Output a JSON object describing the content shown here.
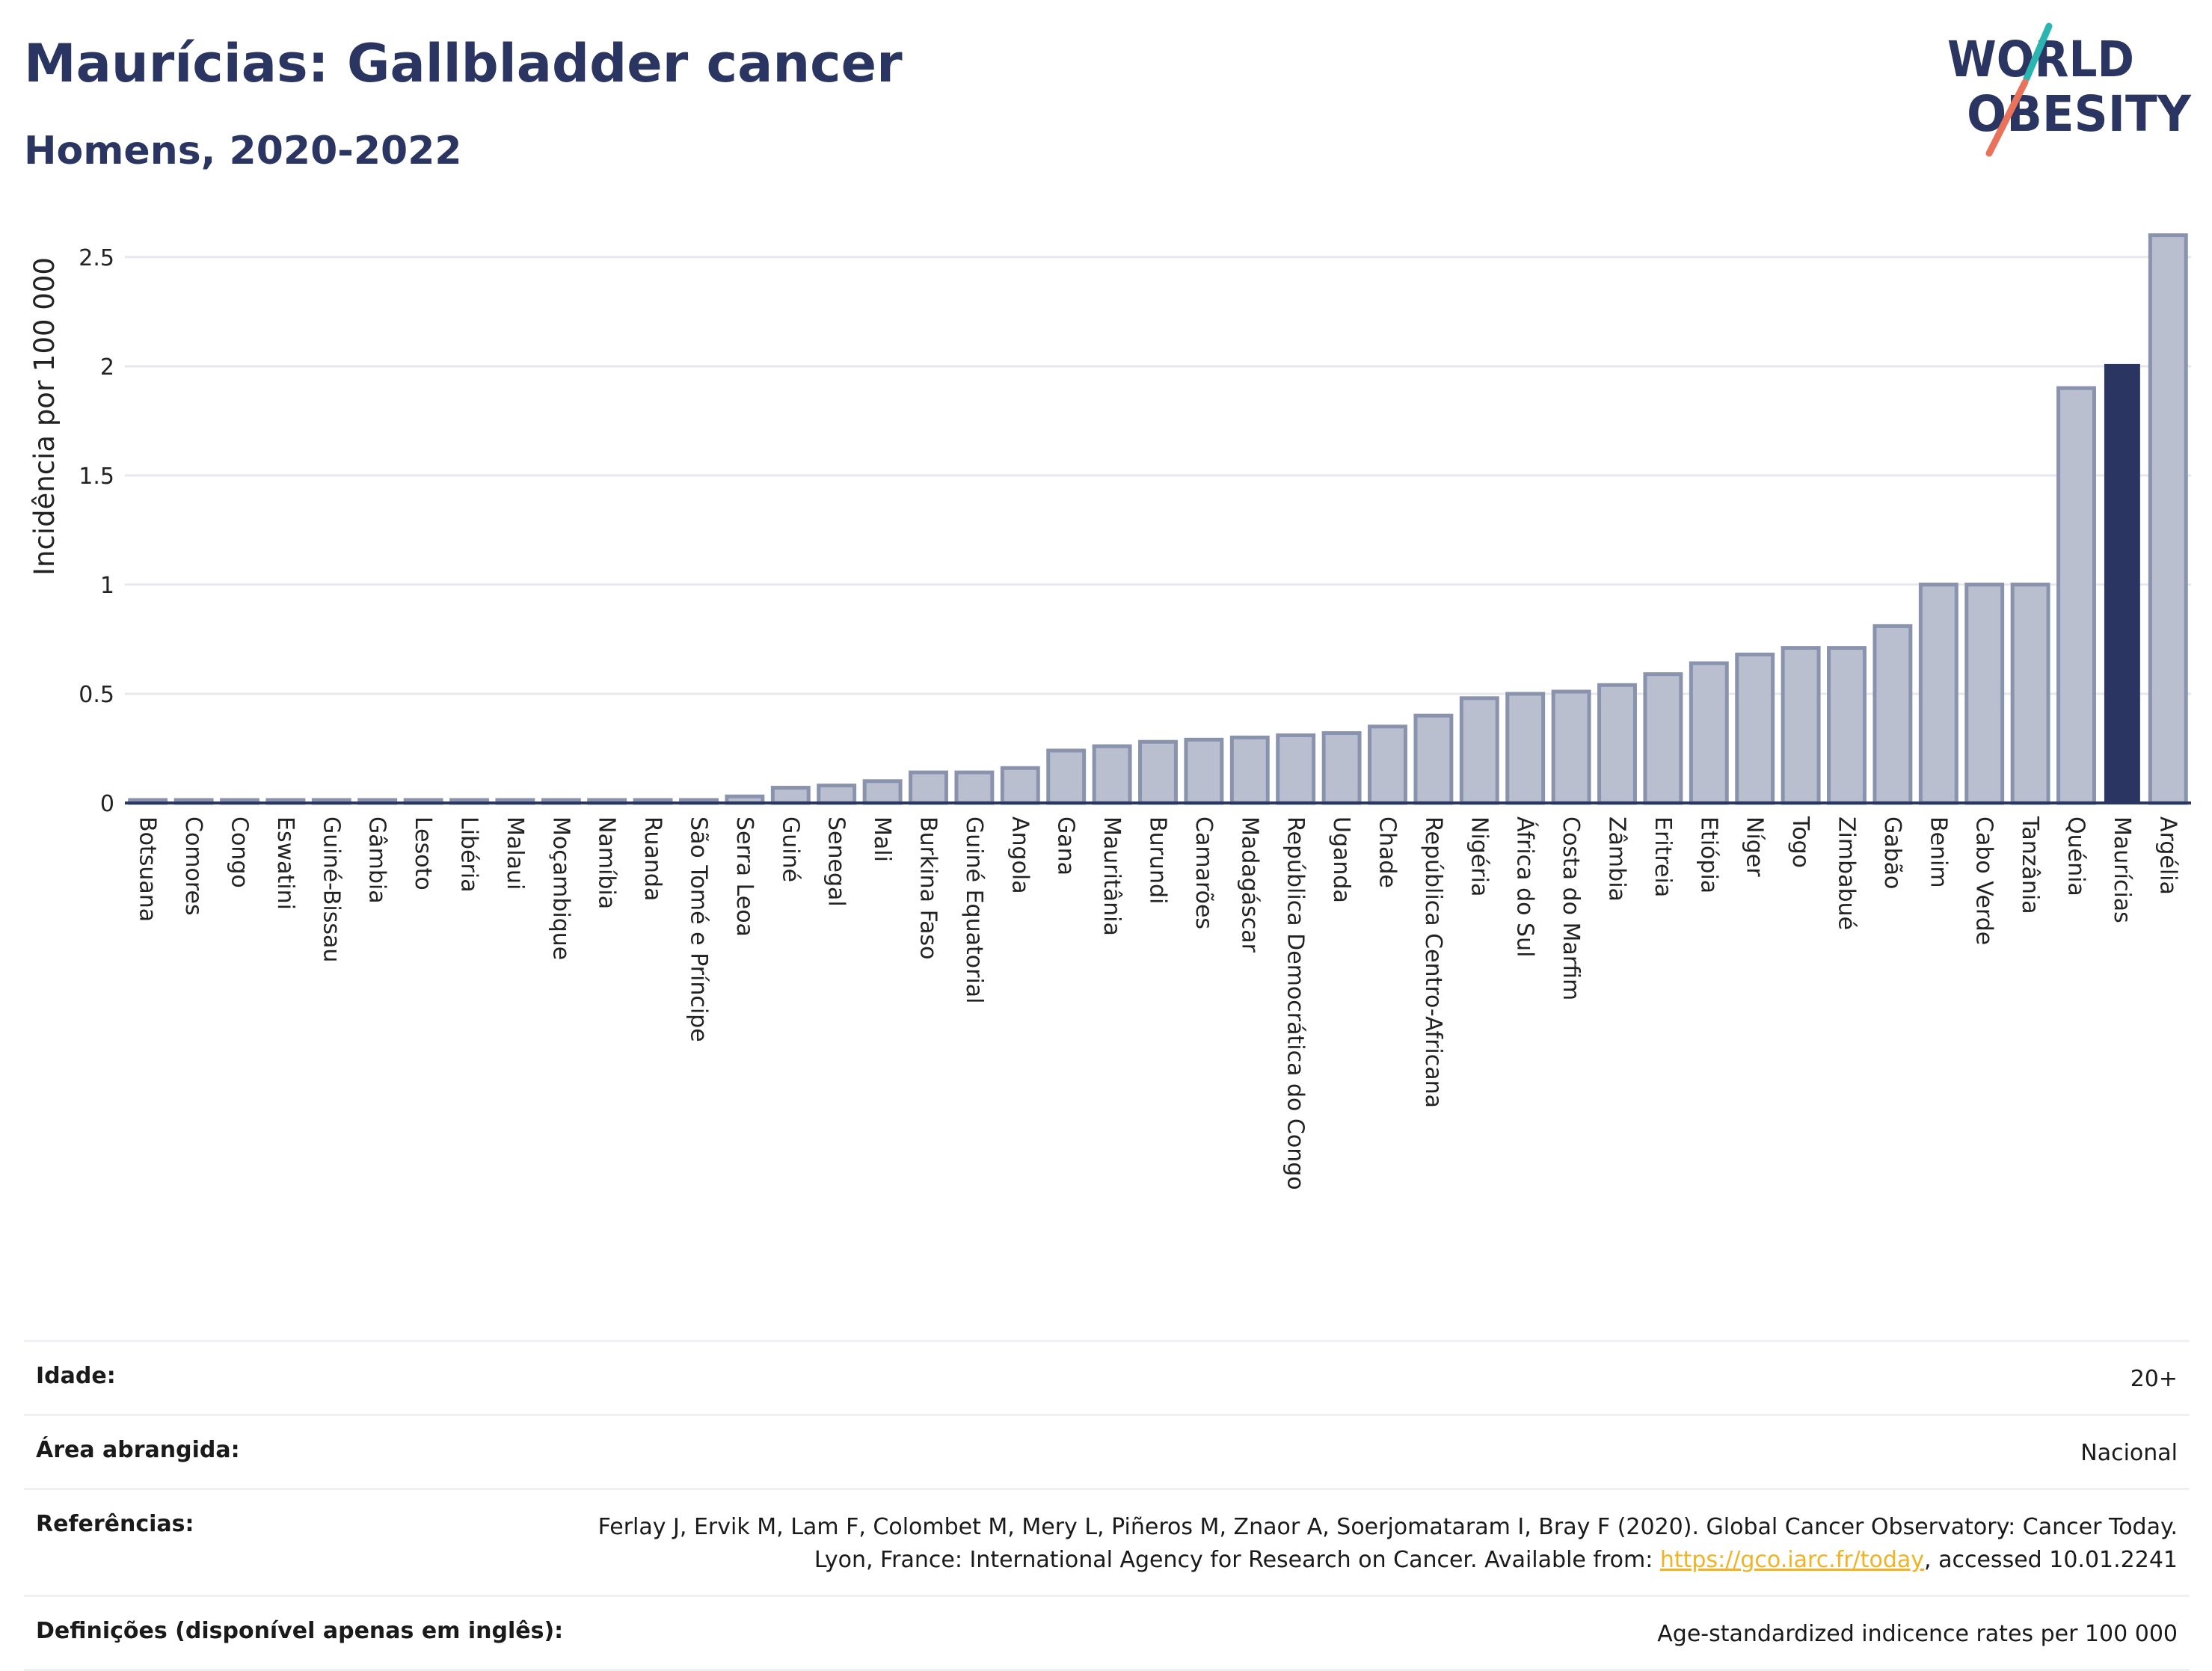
{
  "header": {
    "title": "Maurícias: Gallbladder cancer",
    "subtitle": "Homens, 2020-2022"
  },
  "logo": {
    "line1": "WORLD",
    "line2": "OBESITY",
    "colors": {
      "text": "#2b3561",
      "slash_top": "#2bb5b0",
      "slash_bottom": "#e8735a"
    }
  },
  "colors": {
    "bar_fill": "#b9bfcf",
    "bar_stroke": "#8a93ad",
    "highlight_fill": "#2b3561",
    "grid": "#e6e8ee",
    "axis": "#2b3561"
  },
  "chart_data": {
    "type": "bar",
    "ylabel": "Incidência por 100 000",
    "ylim": [
      0,
      2.65
    ],
    "yticks": [
      0,
      0.5,
      1,
      1.5,
      2,
      2.5
    ],
    "ytick_labels": [
      "0",
      "0.5",
      "1",
      "1.5",
      "2",
      "2.5"
    ],
    "grid": true,
    "highlight": "Maurícias",
    "categories": [
      "Botsuana",
      "Comores",
      "Congo",
      "Eswatini",
      "Guiné-Bissau",
      "Gâmbia",
      "Lesoto",
      "Libéria",
      "Malaui",
      "Moçambique",
      "Namíbia",
      "Ruanda",
      "São Tomé e Príncipe",
      "Serra Leoa",
      "Guiné",
      "Senegal",
      "Mali",
      "Burkina Faso",
      "Guiné Equatorial",
      "Angola",
      "Gana",
      "Mauritânia",
      "Burundi",
      "Camarões",
      "Madagáscar",
      "República Democrática do Congo",
      "Uganda",
      "Chade",
      "República Centro-Africana",
      "Nigéria",
      "África do Sul",
      "Costa do Marfim",
      "Zâmbia",
      "Eritreia",
      "Etiópia",
      "Níger",
      "Togo",
      "Zimbabué",
      "Gabão",
      "Benim",
      "Cabo Verde",
      "Tanzânia",
      "Quénia",
      "Maurícias",
      "Argélia"
    ],
    "values": [
      0,
      0,
      0,
      0,
      0,
      0,
      0,
      0,
      0,
      0,
      0,
      0,
      0,
      0.03,
      0.07,
      0.08,
      0.1,
      0.14,
      0.14,
      0.16,
      0.24,
      0.26,
      0.28,
      0.29,
      0.3,
      0.31,
      0.32,
      0.35,
      0.4,
      0.48,
      0.5,
      0.51,
      0.54,
      0.59,
      0.64,
      0.68,
      0.71,
      0.71,
      0.81,
      1.0,
      1.0,
      1.0,
      1.9,
      2.01,
      2.6
    ]
  },
  "meta": {
    "rows": [
      {
        "label": "Idade:",
        "value": "20+"
      },
      {
        "label": "Área abrangida:",
        "value": "Nacional"
      },
      {
        "label": "Referências:",
        "value_before": "Ferlay J, Ervik M, Lam F, Colombet M, Mery L, Piñeros M, Znaor A, Soerjomataram I, Bray F (2020). Global Cancer Observatory: Cancer Today. Lyon, France: International Agency for Research on Cancer. Available from: ",
        "link": "https://gco.iarc.fr/today",
        "value_after": ", accessed 10.01.2241"
      },
      {
        "label": "Definições (disponível apenas em inglês):",
        "value": "Age-standardized indicence rates per 100 000"
      }
    ]
  }
}
